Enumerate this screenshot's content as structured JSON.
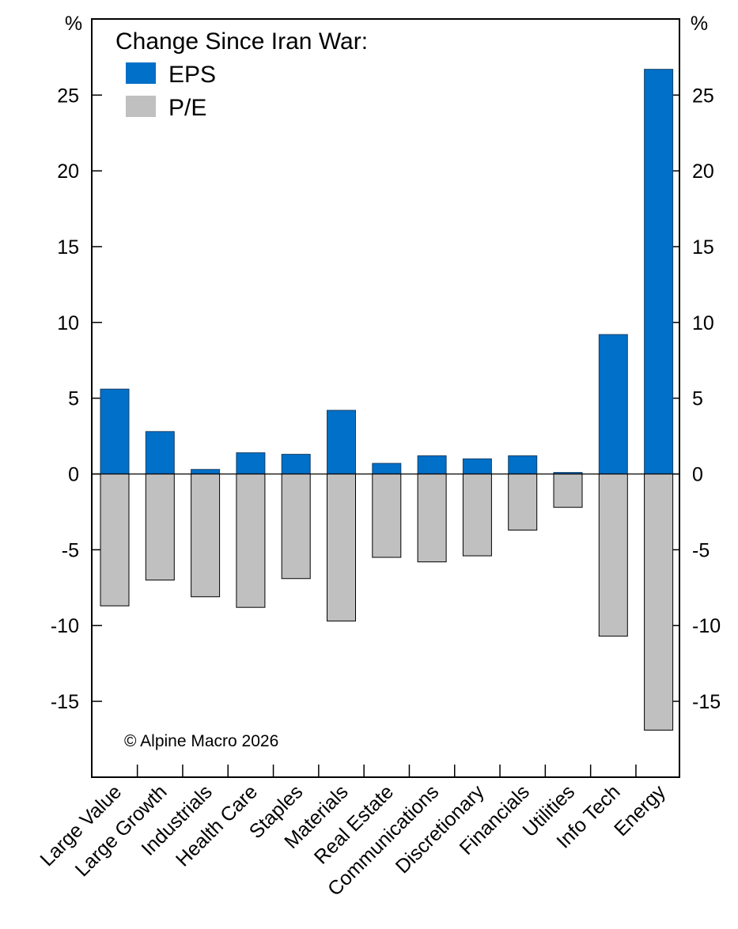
{
  "chart_data": {
    "type": "bar",
    "title": "Change Since Iran War:",
    "ylabel_left": "%",
    "ylabel_right": "%",
    "ylim": [
      -20,
      30
    ],
    "yticks": [
      -15,
      -10,
      -5,
      0,
      5,
      10,
      15,
      20,
      25
    ],
    "categories": [
      "Large Value",
      "Large Growth",
      "Industrials",
      "Health Care",
      "Staples",
      "Materials",
      "Real Estate",
      "Communications",
      "Discretionary",
      "Financials",
      "Utilities",
      "Info Tech",
      "Energy"
    ],
    "series": [
      {
        "name": "EPS",
        "color": "#0070c8",
        "values": [
          5.6,
          2.8,
          0.3,
          1.4,
          1.3,
          4.2,
          0.7,
          1.2,
          1.0,
          1.2,
          0.1,
          9.2,
          26.7
        ]
      },
      {
        "name": "P/E",
        "color": "#c0c0c0",
        "values": [
          -8.7,
          -7.0,
          -8.1,
          -8.8,
          -6.9,
          -9.7,
          -5.5,
          -5.8,
          -5.4,
          -3.7,
          -2.2,
          -10.7,
          -16.9
        ]
      }
    ],
    "legend_position": "top-left",
    "annotation": "© Alpine Macro 2026"
  }
}
